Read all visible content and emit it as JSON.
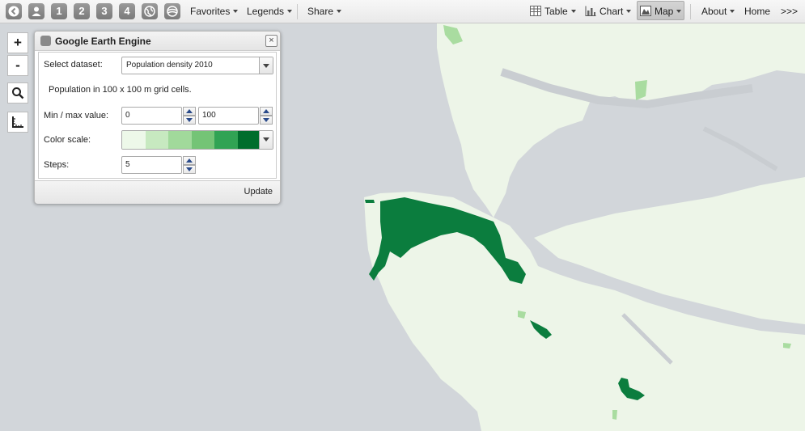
{
  "toolbar": {
    "buttons": [
      "1",
      "2",
      "3",
      "4"
    ],
    "favorites": "Favorites",
    "legends": "Legends",
    "share": "Share",
    "table": "Table",
    "chart": "Chart",
    "map": "Map",
    "about": "About",
    "home": "Home",
    "more": ">>>"
  },
  "zoom": {
    "in": "+",
    "out": "-"
  },
  "panel": {
    "title": "Google Earth Engine",
    "close": "×",
    "dataset_label": "Select dataset:",
    "dataset_value": "Population density 2010",
    "description": "Population in 100 x 100 m grid cells.",
    "minmax_label": "Min / max value:",
    "min_value": "0",
    "max_value": "100",
    "color_scale_label": "Color scale:",
    "color_scale": [
      "#edf8e9",
      "#c7e9c0",
      "#a1d99b",
      "#74c476",
      "#31a354",
      "#006d2c"
    ],
    "steps_label": "Steps:",
    "steps_value": "5",
    "update_label": "Update"
  },
  "map": {
    "ocean_color": "#d2d6da",
    "land_color": "#edf5e8",
    "water_color": "#c9cdd1",
    "high_density_color": "#0b7d3e",
    "low_density_color": "#a9dca0"
  }
}
